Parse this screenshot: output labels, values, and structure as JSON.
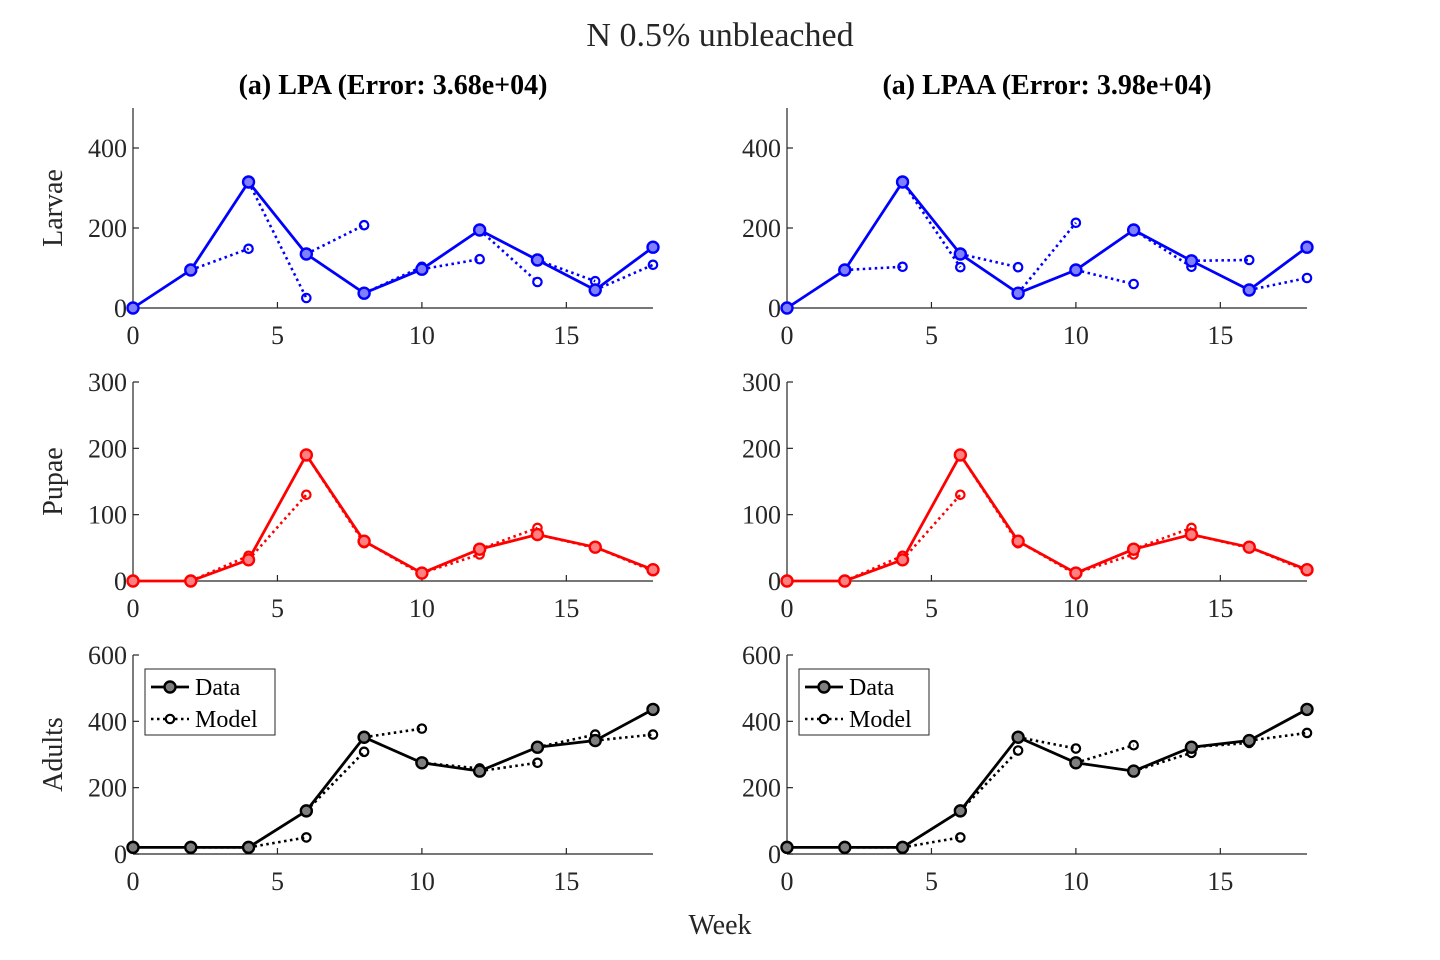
{
  "figure": {
    "title": "N 0.5% unbleached",
    "xlabel": "Week"
  },
  "chart_data": [
    {
      "type": "line",
      "title": "(a) LPA (Error: 3.68e+04)",
      "ylabel": "Larvae",
      "color": "#0000ff",
      "xlim": [
        0,
        18
      ],
      "ylim": [
        0,
        500
      ],
      "xticks": [
        0,
        5,
        10,
        15
      ],
      "yticks": [
        0,
        200,
        400
      ],
      "data": {
        "name": "Data",
        "x": [
          0,
          2,
          4,
          6,
          8,
          10,
          12,
          14,
          16,
          18
        ],
        "y": [
          0,
          95,
          315,
          135,
          37,
          97,
          195,
          120,
          45,
          152
        ]
      },
      "model": [
        {
          "x": [
            2,
            4
          ],
          "y": [
            95,
            148
          ]
        },
        {
          "x": [
            4,
            6
          ],
          "y": [
            315,
            25
          ]
        },
        {
          "x": [
            6,
            8
          ],
          "y": [
            135,
            207
          ]
        },
        {
          "x": [
            8,
            10
          ],
          "y": [
            37,
            103
          ]
        },
        {
          "x": [
            10,
            12
          ],
          "y": [
            97,
            122
          ]
        },
        {
          "x": [
            12,
            14
          ],
          "y": [
            195,
            65
          ]
        },
        {
          "x": [
            14,
            16
          ],
          "y": [
            120,
            67
          ]
        },
        {
          "x": [
            16,
            18
          ],
          "y": [
            45,
            108
          ]
        }
      ]
    },
    {
      "type": "line",
      "title": "(a) LPAA (Error: 3.98e+04)",
      "ylabel": "",
      "color": "#0000ff",
      "xlim": [
        0,
        18
      ],
      "ylim": [
        0,
        500
      ],
      "xticks": [
        0,
        5,
        10,
        15
      ],
      "yticks": [
        0,
        200,
        400
      ],
      "data": {
        "name": "Data",
        "x": [
          0,
          2,
          4,
          6,
          8,
          10,
          12,
          14,
          16,
          18
        ],
        "y": [
          0,
          95,
          315,
          135,
          37,
          95,
          195,
          118,
          45,
          152
        ]
      },
      "model": [
        {
          "x": [
            2,
            4
          ],
          "y": [
            95,
            103
          ]
        },
        {
          "x": [
            4,
            6
          ],
          "y": [
            315,
            102
          ]
        },
        {
          "x": [
            6,
            8
          ],
          "y": [
            135,
            102
          ]
        },
        {
          "x": [
            8,
            10
          ],
          "y": [
            37,
            213
          ]
        },
        {
          "x": [
            10,
            12
          ],
          "y": [
            95,
            60
          ]
        },
        {
          "x": [
            12,
            14
          ],
          "y": [
            195,
            103
          ]
        },
        {
          "x": [
            14,
            16
          ],
          "y": [
            118,
            120
          ]
        },
        {
          "x": [
            16,
            18
          ],
          "y": [
            45,
            75
          ]
        }
      ]
    },
    {
      "type": "line",
      "title": "",
      "ylabel": "Pupae",
      "color": "#ff0000",
      "xlim": [
        0,
        18
      ],
      "ylim": [
        0,
        300
      ],
      "xticks": [
        0,
        5,
        10,
        15
      ],
      "yticks": [
        0,
        100,
        200,
        300
      ],
      "data": {
        "name": "Data",
        "x": [
          0,
          2,
          4,
          6,
          8,
          10,
          12,
          14,
          16,
          18
        ],
        "y": [
          0,
          0,
          32,
          190,
          60,
          12,
          48,
          70,
          51,
          17
        ]
      },
      "model": [
        {
          "x": [
            2,
            4
          ],
          "y": [
            0,
            38
          ]
        },
        {
          "x": [
            4,
            6
          ],
          "y": [
            32,
            130
          ]
        },
        {
          "x": [
            6,
            8
          ],
          "y": [
            190,
            57
          ]
        },
        {
          "x": [
            8,
            10
          ],
          "y": [
            60,
            10
          ]
        },
        {
          "x": [
            10,
            12
          ],
          "y": [
            12,
            40
          ]
        },
        {
          "x": [
            12,
            14
          ],
          "y": [
            48,
            80
          ]
        },
        {
          "x": [
            14,
            16
          ],
          "y": [
            70,
            50
          ]
        },
        {
          "x": [
            16,
            18
          ],
          "y": [
            51,
            15
          ]
        }
      ]
    },
    {
      "type": "line",
      "title": "",
      "ylabel": "",
      "color": "#ff0000",
      "xlim": [
        0,
        18
      ],
      "ylim": [
        0,
        300
      ],
      "xticks": [
        0,
        5,
        10,
        15
      ],
      "yticks": [
        0,
        100,
        200,
        300
      ],
      "data": {
        "name": "Data",
        "x": [
          0,
          2,
          4,
          6,
          8,
          10,
          12,
          14,
          16,
          18
        ],
        "y": [
          0,
          0,
          32,
          190,
          60,
          12,
          48,
          70,
          51,
          17
        ]
      },
      "model": [
        {
          "x": [
            2,
            4
          ],
          "y": [
            0,
            38
          ]
        },
        {
          "x": [
            4,
            6
          ],
          "y": [
            32,
            130
          ]
        },
        {
          "x": [
            6,
            8
          ],
          "y": [
            190,
            57
          ]
        },
        {
          "x": [
            8,
            10
          ],
          "y": [
            60,
            10
          ]
        },
        {
          "x": [
            10,
            12
          ],
          "y": [
            12,
            40
          ]
        },
        {
          "x": [
            12,
            14
          ],
          "y": [
            48,
            80
          ]
        },
        {
          "x": [
            14,
            16
          ],
          "y": [
            70,
            50
          ]
        },
        {
          "x": [
            16,
            18
          ],
          "y": [
            51,
            15
          ]
        }
      ]
    },
    {
      "type": "line",
      "title": "",
      "ylabel": "Adults",
      "color": "#000000",
      "xlim": [
        0,
        18
      ],
      "ylim": [
        0,
        600
      ],
      "xticks": [
        0,
        5,
        10,
        15
      ],
      "yticks": [
        0,
        200,
        400,
        600
      ],
      "legend": {
        "entries": [
          "Data",
          "Model"
        ],
        "location": "top-left"
      },
      "data": {
        "name": "Data",
        "x": [
          0,
          2,
          4,
          6,
          8,
          10,
          12,
          14,
          16,
          18
        ],
        "y": [
          20,
          20,
          20,
          130,
          352,
          275,
          250,
          322,
          342,
          436
        ]
      },
      "model": [
        {
          "x": [
            2,
            4
          ],
          "y": [
            20,
            20
          ]
        },
        {
          "x": [
            4,
            6
          ],
          "y": [
            20,
            50
          ]
        },
        {
          "x": [
            6,
            8
          ],
          "y": [
            130,
            308
          ]
        },
        {
          "x": [
            8,
            10
          ],
          "y": [
            352,
            378
          ]
        },
        {
          "x": [
            10,
            12
          ],
          "y": [
            275,
            258
          ]
        },
        {
          "x": [
            12,
            14
          ],
          "y": [
            250,
            275
          ]
        },
        {
          "x": [
            14,
            16
          ],
          "y": [
            322,
            360
          ]
        },
        {
          "x": [
            16,
            18
          ],
          "y": [
            342,
            360
          ]
        }
      ]
    },
    {
      "type": "line",
      "title": "",
      "ylabel": "",
      "color": "#000000",
      "xlim": [
        0,
        18
      ],
      "ylim": [
        0,
        600
      ],
      "xticks": [
        0,
        5,
        10,
        15
      ],
      "yticks": [
        0,
        200,
        400,
        600
      ],
      "legend": {
        "entries": [
          "Data",
          "Model"
        ],
        "location": "top-left"
      },
      "data": {
        "name": "Data",
        "x": [
          0,
          2,
          4,
          6,
          8,
          10,
          12,
          14,
          16,
          18
        ],
        "y": [
          20,
          20,
          20,
          130,
          352,
          275,
          250,
          322,
          342,
          436
        ]
      },
      "model": [
        {
          "x": [
            2,
            4
          ],
          "y": [
            20,
            20
          ]
        },
        {
          "x": [
            4,
            6
          ],
          "y": [
            20,
            50
          ]
        },
        {
          "x": [
            6,
            8
          ],
          "y": [
            130,
            312
          ]
        },
        {
          "x": [
            8,
            10
          ],
          "y": [
            352,
            318
          ]
        },
        {
          "x": [
            10,
            12
          ],
          "y": [
            275,
            328
          ]
        },
        {
          "x": [
            12,
            14
          ],
          "y": [
            250,
            305
          ]
        },
        {
          "x": [
            14,
            16
          ],
          "y": [
            322,
            335
          ]
        },
        {
          "x": [
            16,
            18
          ],
          "y": [
            342,
            365
          ]
        }
      ]
    }
  ]
}
